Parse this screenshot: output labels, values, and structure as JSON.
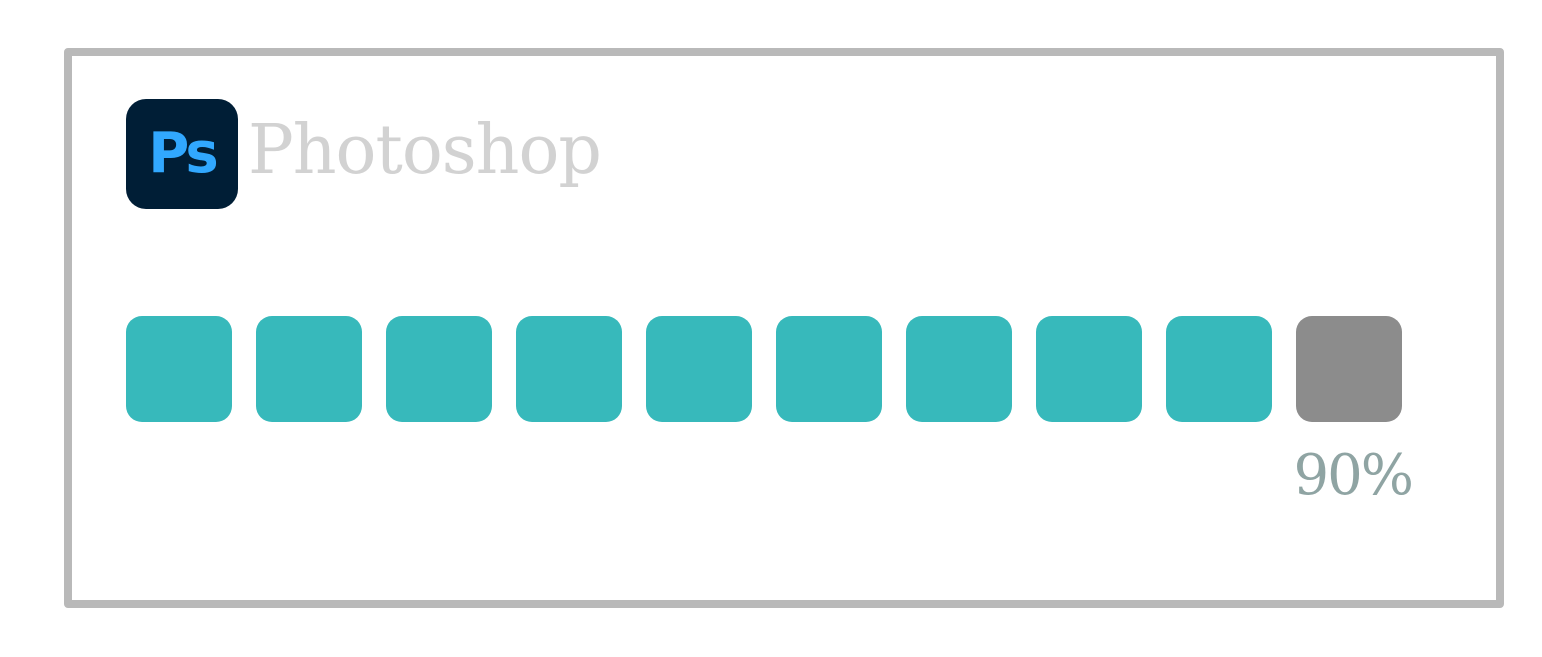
{
  "app": {
    "logo_text": "Ps",
    "title": "Photoshop"
  },
  "progress": {
    "percent_label": "90%",
    "fraction": 0.9,
    "total_blocks": 10,
    "filled_blocks": 9
  },
  "colors": {
    "filled": "#37b9bb",
    "empty": "#8c8c8c",
    "logo_bg": "#001e36",
    "logo_text": "#31a8ff",
    "title": "#d2d2d2",
    "percent": "#8fa4a3",
    "frame": "#b9b9b9"
  },
  "icons": {
    "logo": "photoshop-logo-icon"
  }
}
